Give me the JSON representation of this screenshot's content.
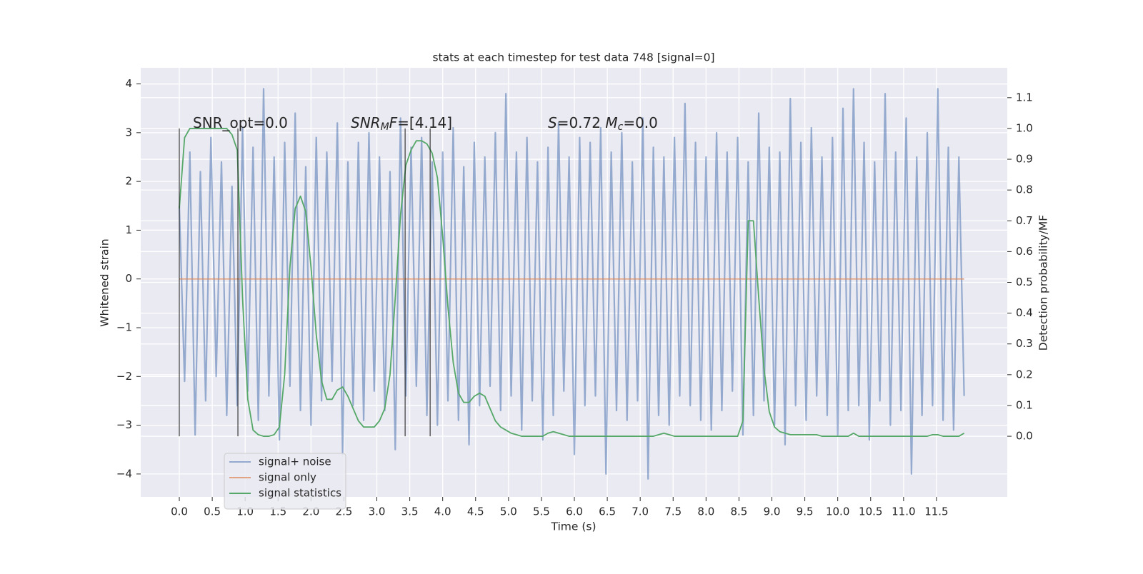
{
  "chart_data": {
    "type": "line",
    "title": "stats at each timestep for test data 748 [signal=0]",
    "x_label": "Time (s)",
    "y_label": "Whitened strain",
    "y2_label": "Detection probability/MF",
    "xlim": [
      -0.586,
      12.575
    ],
    "ylim": [
      -4.47,
      4.33
    ],
    "y2lim": [
      -0.197,
      1.197
    ],
    "xticks": [
      {
        "value": 0,
        "label": "0.0"
      },
      0.5,
      {
        "value": 1,
        "label": "1.0"
      },
      1.5,
      {
        "value": 2,
        "label": "2.0"
      },
      2.5,
      {
        "value": 3,
        "label": "3.0"
      },
      3.5,
      {
        "value": 4,
        "label": "4.0"
      },
      4.5,
      {
        "value": 5,
        "label": "5.0"
      },
      5.5,
      {
        "value": 6,
        "label": "6.0"
      },
      6.5,
      {
        "value": 7,
        "label": "7.0"
      },
      7.5,
      {
        "value": 8,
        "label": "8.0"
      },
      8.5,
      {
        "value": 9,
        "label": "9.0"
      },
      9.5,
      {
        "value": 10,
        "label": "10.0"
      },
      10.5,
      {
        "value": 11,
        "label": "11.0"
      },
      11.5
    ],
    "yticks": [
      {
        "value": -4,
        "label": "−4"
      },
      {
        "value": -3,
        "label": "−3"
      },
      {
        "value": -2,
        "label": "−2"
      },
      {
        "value": -1,
        "label": "−1"
      },
      0,
      1,
      2,
      3,
      4
    ],
    "y2ticks": [
      {
        "value": 0,
        "label": "0.0"
      },
      0.1,
      0.2,
      0.3,
      0.4,
      0.5,
      0.6,
      0.7,
      0.8,
      0.9,
      {
        "value": 1,
        "label": "1.0"
      },
      1.1
    ],
    "grid": true,
    "legend": "lower left",
    "x": [
      0,
      0.08,
      0.16,
      0.24,
      0.32,
      0.4,
      0.48,
      0.56,
      0.64,
      0.72,
      0.8,
      0.88,
      0.96,
      1.04,
      1.12,
      1.2,
      1.28,
      1.36,
      1.44,
      1.52,
      1.6,
      1.68,
      1.76,
      1.84,
      1.92,
      2,
      2.08,
      2.16,
      2.24,
      2.32,
      2.4,
      2.48,
      2.56,
      2.64,
      2.72,
      2.8,
      2.88,
      2.96,
      3.04,
      3.12,
      3.2,
      3.28,
      3.36,
      3.44,
      3.52,
      3.6,
      3.68,
      3.76,
      3.84,
      3.92,
      4,
      4.08,
      4.16,
      4.24,
      4.32,
      4.4,
      4.48,
      4.56,
      4.64,
      4.72,
      4.8,
      4.88,
      4.96,
      5.04,
      5.12,
      5.2,
      5.28,
      5.36,
      5.44,
      5.52,
      5.6,
      5.68,
      5.76,
      5.84,
      5.92,
      6,
      6.08,
      6.16,
      6.24,
      6.32,
      6.4,
      6.48,
      6.56,
      6.64,
      6.72,
      6.8,
      6.88,
      6.96,
      7.04,
      7.12,
      7.2,
      7.28,
      7.36,
      7.44,
      7.52,
      7.6,
      7.68,
      7.76,
      7.84,
      7.92,
      8,
      8.08,
      8.16,
      8.24,
      8.32,
      8.4,
      8.48,
      8.56,
      8.64,
      8.72,
      8.8,
      8.88,
      8.96,
      9.04,
      9.12,
      9.2,
      9.28,
      9.36,
      9.44,
      9.52,
      9.6,
      9.68,
      9.76,
      9.84,
      9.92,
      10,
      10.08,
      10.16,
      10.24,
      10.32,
      10.4,
      10.48,
      10.56,
      10.64,
      10.72,
      10.8,
      10.88,
      10.96,
      11.04,
      11.12,
      11.2,
      11.28,
      11.36,
      11.44,
      11.52,
      11.6,
      11.68,
      11.76,
      11.84,
      11.92
    ],
    "series": [
      {
        "name": "signal+ noise",
        "color": "#4c72b0",
        "alpha": 0.55,
        "values": [
          1.5,
          -2.1,
          2.6,
          -3.2,
          2.2,
          -2.5,
          2.9,
          -2.0,
          2.4,
          -2.8,
          1.9,
          -2.6,
          3.1,
          -2.3,
          2.7,
          -2.9,
          3.9,
          -2.4,
          2.5,
          -3.3,
          2.8,
          -2.2,
          3.4,
          -2.7,
          2.3,
          -3.0,
          2.9,
          -2.5,
          2.6,
          -2.1,
          3.2,
          -3.6,
          2.4,
          -2.6,
          2.8,
          -2.9,
          3.0,
          -2.3,
          2.5,
          -2.7,
          2.2,
          -3.5,
          3.3,
          -2.4,
          2.7,
          -2.2,
          2.9,
          -2.8,
          2.4,
          -3.0,
          2.6,
          -2.5,
          3.1,
          -2.9,
          2.3,
          -3.4,
          2.8,
          -2.6,
          2.5,
          -2.2,
          3.0,
          -2.7,
          3.8,
          -2.4,
          2.6,
          -3.1,
          2.9,
          -2.5,
          2.4,
          -3.3,
          2.7,
          -2.8,
          3.2,
          -2.3,
          2.5,
          -3.6,
          2.9,
          -2.6,
          2.8,
          -2.4,
          3.1,
          -4.0,
          2.6,
          -2.7,
          3.0,
          -2.9,
          2.4,
          -2.5,
          3.3,
          -4.1,
          2.7,
          -2.8,
          2.5,
          -3.0,
          2.9,
          -2.4,
          3.6,
          -2.6,
          2.8,
          -2.9,
          2.5,
          -3.1,
          3.0,
          -2.7,
          2.6,
          -2.3,
          2.9,
          -3.2,
          2.4,
          -2.8,
          3.4,
          -2.5,
          2.7,
          -3.0,
          2.6,
          -3.4,
          3.7,
          -2.6,
          2.8,
          -2.9,
          3.1,
          -2.4,
          2.5,
          -2.8,
          2.9,
          -3.2,
          3.5,
          -2.7,
          3.9,
          -2.6,
          2.8,
          -3.3,
          2.4,
          -2.5,
          3.8,
          -3.0,
          2.6,
          -2.7,
          3.3,
          -4.0,
          2.5,
          -2.8,
          3.0,
          -2.6,
          3.9,
          -2.9,
          2.7,
          -3.1,
          2.5,
          -2.4
        ]
      },
      {
        "name": "signal only",
        "color": "#dd8452",
        "alpha": 0.7,
        "values": [
          0,
          0,
          0,
          0,
          0,
          0,
          0,
          0,
          0,
          0,
          0,
          0,
          0,
          0,
          0,
          0,
          0,
          0,
          0,
          0,
          0,
          0,
          0,
          0,
          0,
          0,
          0,
          0,
          0,
          0,
          0,
          0,
          0,
          0,
          0,
          0,
          0,
          0,
          0,
          0,
          0,
          0,
          0,
          0,
          0,
          0,
          0,
          0,
          0,
          0,
          0,
          0,
          0,
          0,
          0,
          0,
          0,
          0,
          0,
          0,
          0,
          0,
          0,
          0,
          0,
          0,
          0,
          0,
          0,
          0,
          0,
          0,
          0,
          0,
          0,
          0,
          0,
          0,
          0,
          0,
          0,
          0,
          0,
          0,
          0,
          0,
          0,
          0,
          0,
          0,
          0,
          0,
          0,
          0,
          0,
          0,
          0,
          0,
          0,
          0,
          0,
          0,
          0,
          0,
          0,
          0,
          0,
          0,
          0,
          0,
          0,
          0,
          0,
          0,
          0,
          0,
          0,
          0,
          0,
          0,
          0,
          0,
          0,
          0,
          0,
          0,
          0,
          0,
          0,
          0,
          0,
          0,
          0,
          0,
          0,
          0,
          0,
          0,
          0,
          0,
          0,
          0,
          0,
          0,
          0,
          0,
          0,
          0,
          0,
          0
        ]
      },
      {
        "name": "signal statistics",
        "color": "#55a868",
        "alpha": 1,
        "axis": "y2",
        "values": [
          0.74,
          0.97,
          1.0,
          1.0,
          1.0,
          1.0,
          1.0,
          1.0,
          1.0,
          1.0,
          0.98,
          0.93,
          0.45,
          0.12,
          0.02,
          0.005,
          0.0,
          0.0,
          0.005,
          0.03,
          0.2,
          0.55,
          0.74,
          0.78,
          0.73,
          0.55,
          0.33,
          0.18,
          0.12,
          0.12,
          0.15,
          0.16,
          0.13,
          0.09,
          0.05,
          0.03,
          0.03,
          0.03,
          0.05,
          0.09,
          0.2,
          0.45,
          0.72,
          0.88,
          0.93,
          0.96,
          0.96,
          0.95,
          0.92,
          0.84,
          0.65,
          0.42,
          0.24,
          0.14,
          0.11,
          0.11,
          0.13,
          0.14,
          0.13,
          0.09,
          0.05,
          0.03,
          0.02,
          0.01,
          0.005,
          0.0,
          0.0,
          0.0,
          0.0,
          0.0,
          0.01,
          0.015,
          0.01,
          0.005,
          0.0,
          0.0,
          0.0,
          0.0,
          0.0,
          0.0,
          0.0,
          0.0,
          0.0,
          0.0,
          0.0,
          0.0,
          0.0,
          0.0,
          0.0,
          0.0,
          0.0,
          0.005,
          0.01,
          0.005,
          0.0,
          0.0,
          0.0,
          0.0,
          0.0,
          0.0,
          0.0,
          0.0,
          0.0,
          0.0,
          0.0,
          0.0,
          0.0,
          0.05,
          0.7,
          0.7,
          0.45,
          0.22,
          0.08,
          0.03,
          0.015,
          0.01,
          0.005,
          0.005,
          0.005,
          0.005,
          0.005,
          0.005,
          0.0,
          0.0,
          0.0,
          0.0,
          0.0,
          0.0,
          0.01,
          0.0,
          0.0,
          0.0,
          0.0,
          0.0,
          0.0,
          0.0,
          0.0,
          0.0,
          0.0,
          0.0,
          0.0,
          0.0,
          0.0,
          0.005,
          0.005,
          0.0,
          0.0,
          0.0,
          0.0,
          0.01
        ]
      }
    ],
    "vlines": {
      "x": [
        0,
        0.89,
        3.43,
        3.81
      ],
      "y2": [
        0,
        1
      ]
    },
    "annotations": [
      [
        {
          "text": "SNR_opt=0.0"
        }
      ],
      [
        {
          "text": "SNR",
          "italic": true
        },
        {
          "text": "M",
          "italic": true,
          "sub": true
        },
        {
          "text": "F",
          "italic": true
        },
        {
          "text": "=[4.14]"
        }
      ],
      [
        {
          "text": "S",
          "italic": true
        },
        {
          "text": "=0.72   "
        },
        {
          "text": "M",
          "italic": true
        },
        {
          "text": "c",
          "italic": true,
          "sub": true
        },
        {
          "text": "=0.0"
        }
      ]
    ]
  }
}
